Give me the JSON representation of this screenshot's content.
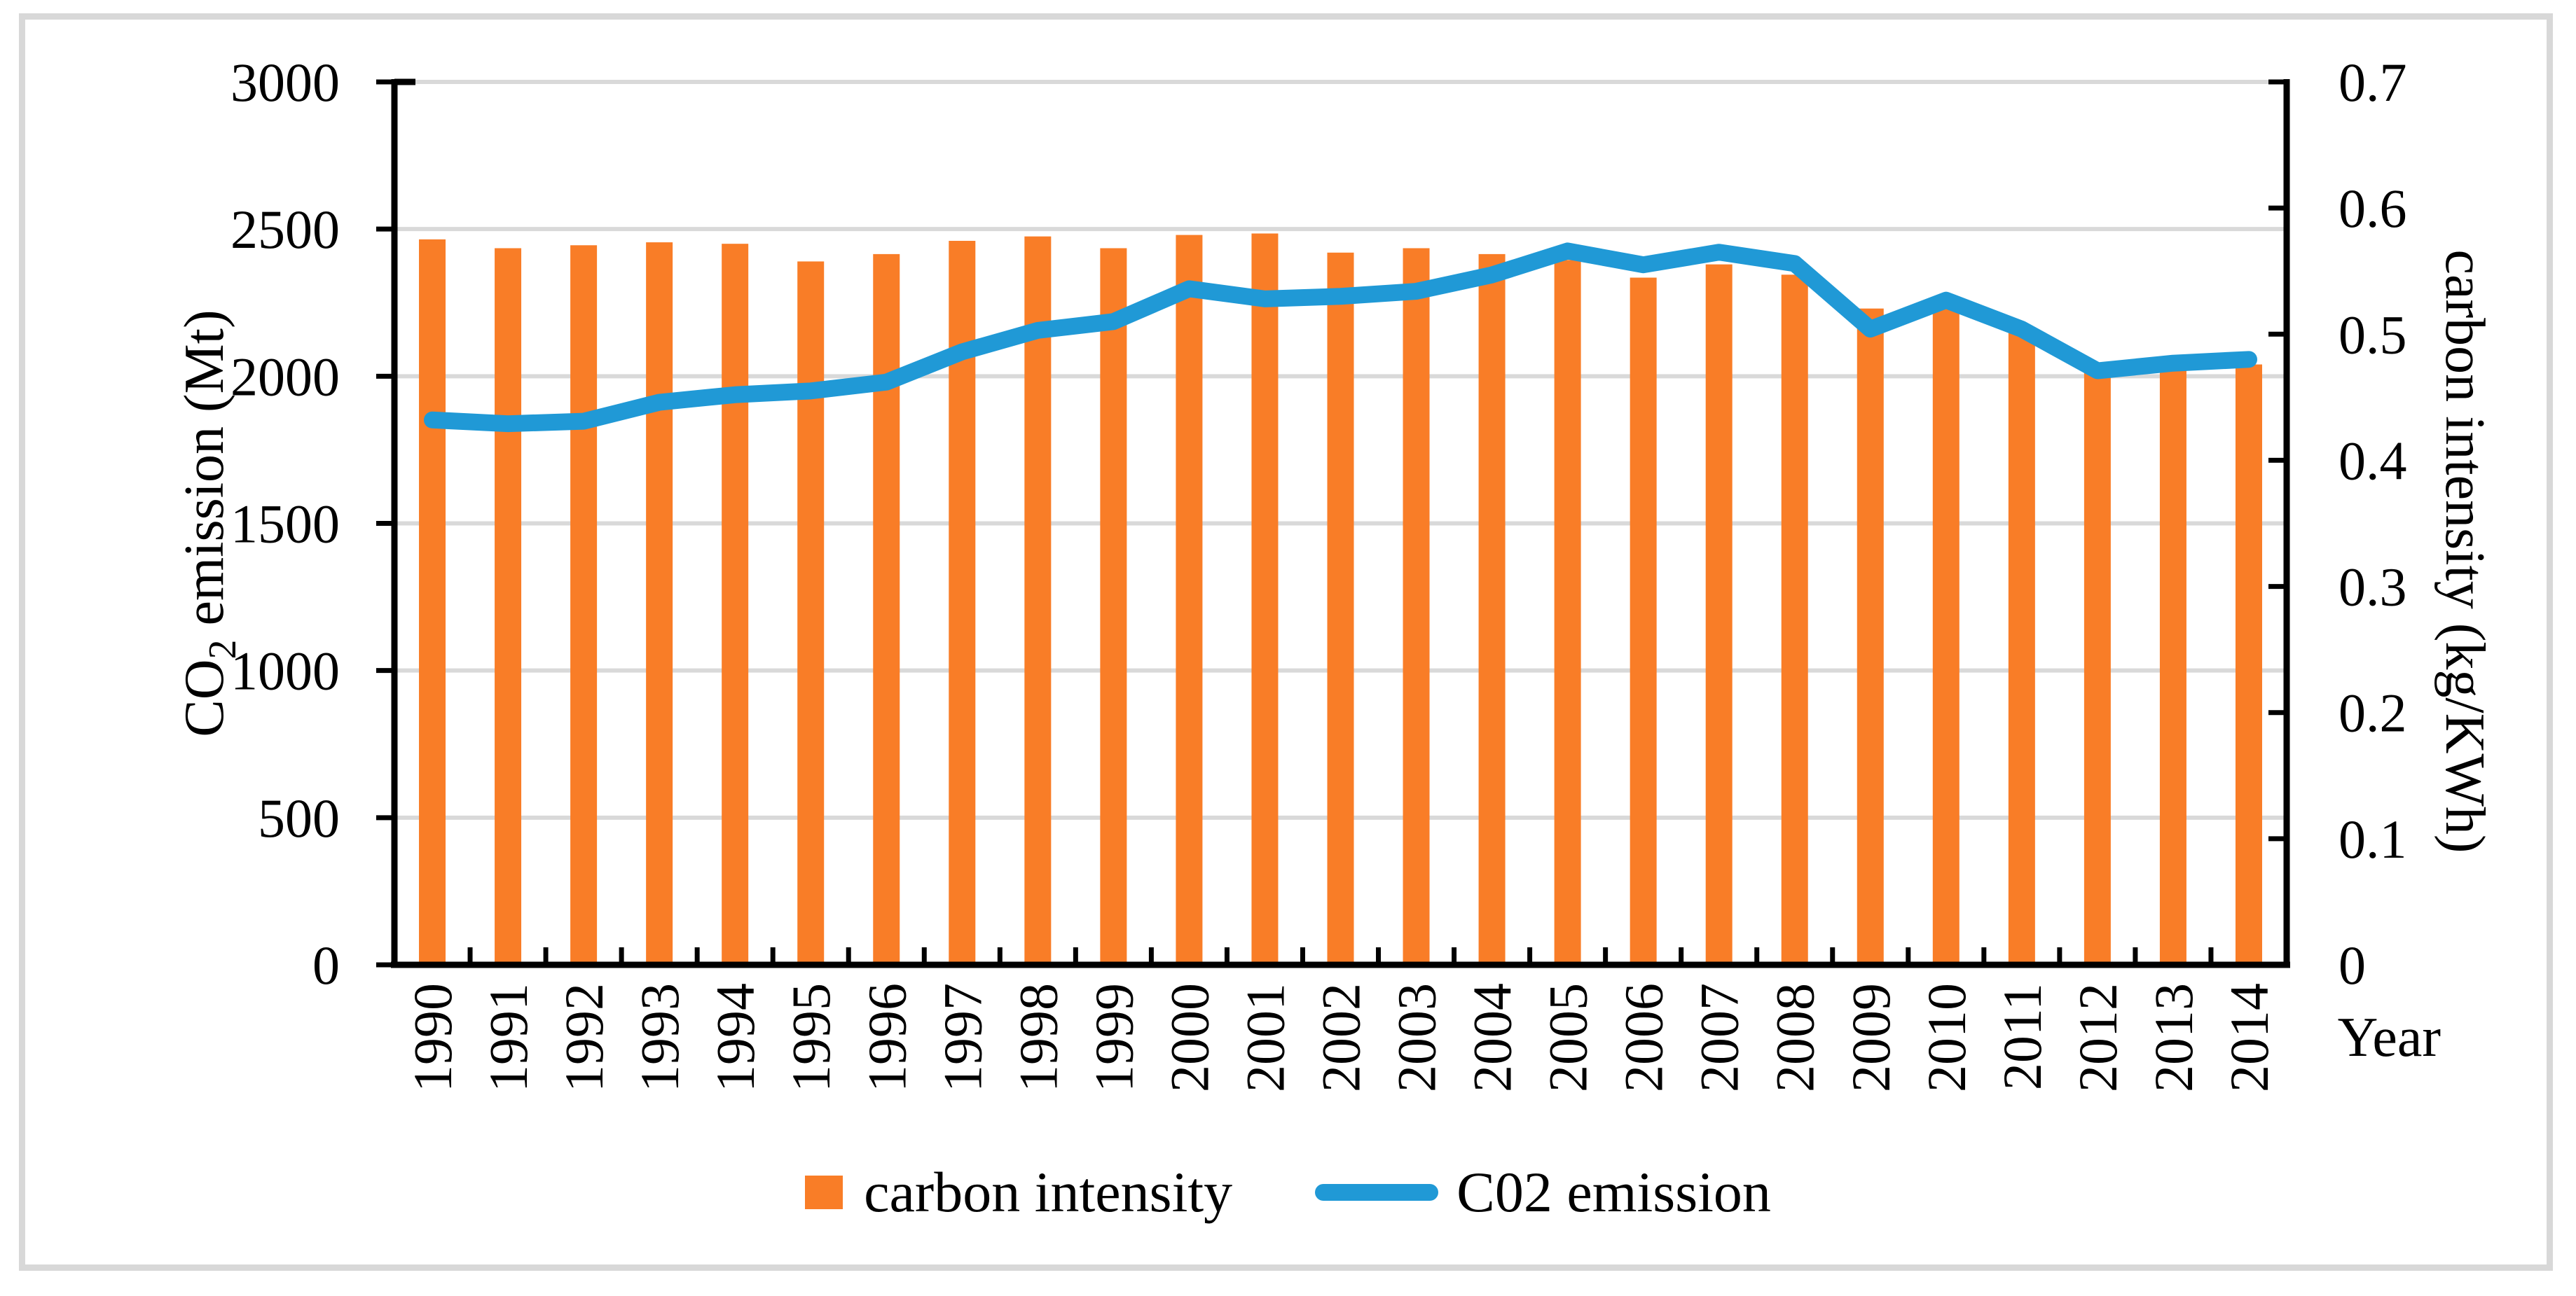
{
  "figure": {
    "background": "#FFFFFF",
    "border_color": "#D8D8D8",
    "grid_color": "#D9D9D9",
    "axis_color": "#000000",
    "left_axis": {
      "title_pre": "CO",
      "title_sub": "2",
      "title_post": " emission (Mt)",
      "tick_labels": [
        "3000",
        "2500",
        "2000",
        "1500",
        "1000",
        "500",
        "0"
      ]
    },
    "right_axis": {
      "title": "carbon intensity (kg/KWh)",
      "tick_labels": [
        "0.7",
        "0.6",
        "0.5",
        "0.4",
        "0.3",
        "0.2",
        "0.1",
        "0"
      ]
    },
    "x_axis": {
      "title": "Year"
    }
  },
  "legend": {
    "items": [
      {
        "label": "carbon intensity",
        "marker": "bar-swatch",
        "color": "#F97D27"
      },
      {
        "label": "C02 emission",
        "marker": "line-swatch",
        "color": "#2099D6"
      }
    ]
  },
  "chart_data": {
    "type": "combo",
    "title": "",
    "categories": [
      "1990",
      "1991",
      "1992",
      "1993",
      "1994",
      "1995",
      "1996",
      "1997",
      "1998",
      "1999",
      "2000",
      "2001",
      "2002",
      "2003",
      "2004",
      "2005",
      "2006",
      "2007",
      "2008",
      "2009",
      "2010",
      "2011",
      "2012",
      "2013",
      "2014"
    ],
    "series": [
      {
        "name": "carbon intensity",
        "type": "bar",
        "axis": "left",
        "color": "#F97D27",
        "values": [
          2465,
          2435,
          2445,
          2455,
          2450,
          2390,
          2415,
          2460,
          2475,
          2435,
          2480,
          2485,
          2420,
          2435,
          2415,
          2395,
          2335,
          2380,
          2345,
          2230,
          2245,
          2155,
          2015,
          2025,
          2040
        ]
      },
      {
        "name": "C02 emission",
        "type": "line",
        "axis": "right",
        "color": "#2099D6",
        "values": [
          0.432,
          0.429,
          0.431,
          0.446,
          0.452,
          0.455,
          0.462,
          0.486,
          0.503,
          0.51,
          0.536,
          0.528,
          0.53,
          0.534,
          0.547,
          0.566,
          0.555,
          0.565,
          0.556,
          0.504,
          0.527,
          0.504,
          0.471,
          0.477,
          0.48
        ]
      }
    ],
    "left_ylabel": "CO2 emission (Mt)",
    "right_ylabel": "carbon intensity (kg/KWh)",
    "xlabel": "Year",
    "left_ylim": [
      0,
      3000
    ],
    "left_step": 500,
    "right_ylim": [
      0,
      0.7
    ],
    "right_step": 0.1,
    "grid": true,
    "legend_position": "bottom"
  }
}
